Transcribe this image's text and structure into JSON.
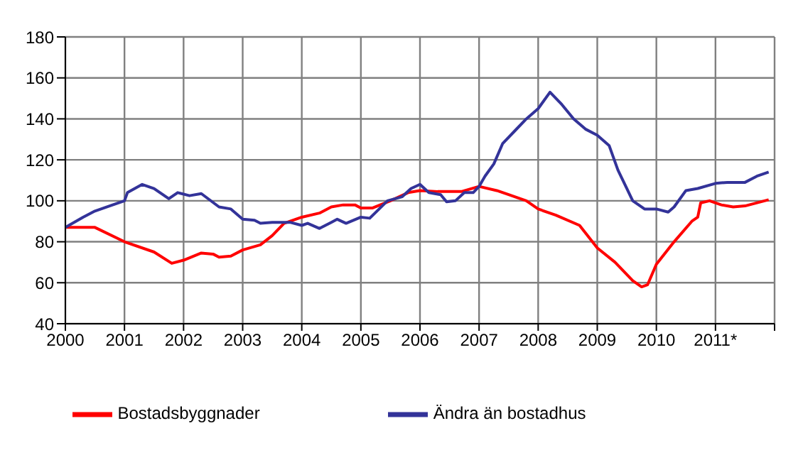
{
  "chart_data": {
    "type": "line",
    "xlim": [
      2000,
      2012
    ],
    "xticks": [
      2000,
      2001,
      2002,
      2003,
      2004,
      2005,
      2006,
      2007,
      2008,
      2009,
      2010,
      {
        "value": 2011,
        "label": "2011*"
      },
      {
        "value": 2012,
        "label": null
      }
    ],
    "ylim": [
      40,
      180
    ],
    "yticks": [
      40,
      60,
      80,
      100,
      120,
      140,
      160,
      180
    ],
    "grid": true,
    "legend": "bottom",
    "marker": "none",
    "line_style": "solid",
    "series": [
      {
        "name": "Bostadsbyggnader",
        "color": "#ff0000",
        "x": [
          2000,
          2000.5,
          2001,
          2001.5,
          2001.8,
          2002,
          2002.3,
          2002.5,
          2002.6,
          2002.8,
          2003,
          2003.3,
          2003.5,
          2003.7,
          2004,
          2004.3,
          2004.5,
          2004.7,
          2004.9,
          2005,
          2005.2,
          2005.5,
          2005.8,
          2006,
          2006.3,
          2006.7,
          2007,
          2007.3,
          2007.5,
          2007.8,
          2008,
          2008.3,
          2008.7,
          2009,
          2009.3,
          2009.6,
          2009.75,
          2009.85,
          2010,
          2010.3,
          2010.6,
          2010.7,
          2010.75,
          2010.9,
          2011.1,
          2011.3,
          2011.5,
          2011.9
        ],
        "values": [
          87,
          87,
          80,
          75,
          69.5,
          71,
          74.5,
          74,
          72.5,
          73,
          76,
          78.5,
          83,
          89,
          92,
          94,
          97,
          98,
          98,
          96.5,
          96.5,
          100,
          104,
          105,
          104.5,
          104.5,
          107,
          105,
          103,
          100,
          96,
          93,
          88,
          77,
          70,
          61,
          58,
          59,
          69,
          80,
          90,
          92,
          99,
          100,
          98,
          97,
          97.5,
          100.5
        ]
      },
      {
        "name": "Ändra än bostadhus",
        "color": "#333399",
        "x": [
          2000,
          2000.3,
          2000.5,
          2000.8,
          2001,
          2001.05,
          2001.3,
          2001.5,
          2001.75,
          2001.9,
          2002.1,
          2002.3,
          2002.6,
          2002.8,
          2003,
          2003.2,
          2003.3,
          2003.5,
          2003.8,
          2004,
          2004.1,
          2004.3,
          2004.5,
          2004.6,
          2004.75,
          2005,
          2005.15,
          2005.45,
          2005.7,
          2005.85,
          2006,
          2006.15,
          2006.35,
          2006.45,
          2006.6,
          2006.75,
          2006.9,
          2007,
          2007.1,
          2007.25,
          2007.4,
          2007.6,
          2007.8,
          2008,
          2008.2,
          2008.4,
          2008.6,
          2008.8,
          2009,
          2009.2,
          2009.35,
          2009.6,
          2009.8,
          2010,
          2010.2,
          2010.3,
          2010.5,
          2010.7,
          2011,
          2011.2,
          2011.5,
          2011.7,
          2011.9
        ],
        "values": [
          87,
          92,
          95,
          98,
          100,
          104,
          108,
          106,
          101,
          104,
          102.5,
          103.5,
          97,
          96,
          91,
          90.5,
          89,
          89.5,
          89.5,
          88,
          89,
          86.5,
          89.5,
          91,
          89,
          92,
          91.5,
          100,
          102,
          106,
          108,
          104,
          103,
          99.5,
          100,
          104,
          104,
          107,
          112,
          118,
          128,
          134,
          140,
          145,
          153,
          147,
          140,
          135,
          132,
          127,
          115,
          100,
          96,
          96,
          94.5,
          97,
          105,
          106,
          108.5,
          109,
          109,
          112,
          114
        ]
      }
    ]
  }
}
